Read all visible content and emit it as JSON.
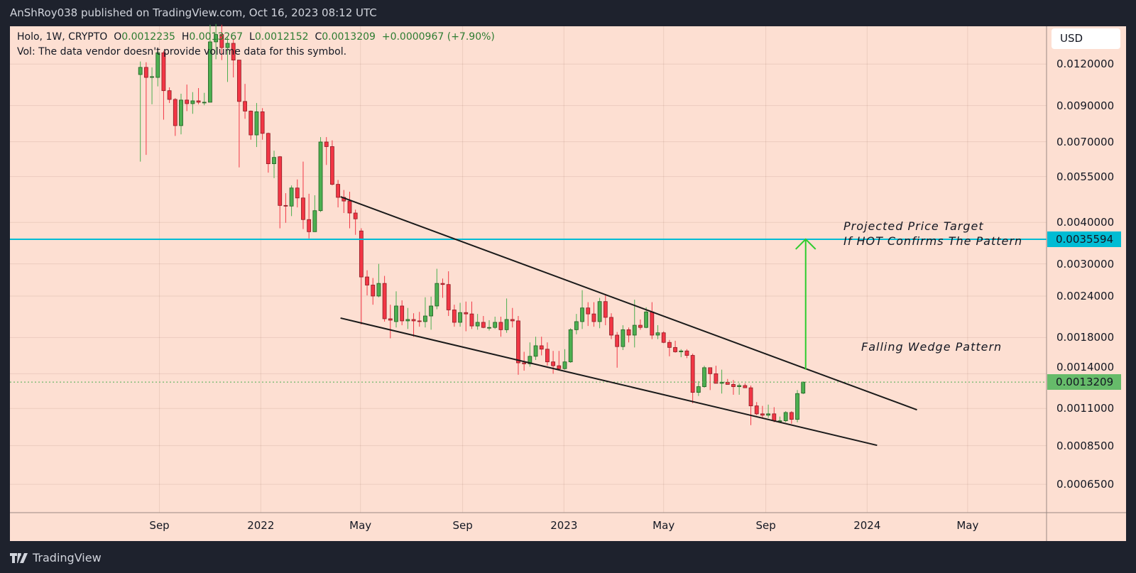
{
  "header": {
    "publisher_line": "AnShRoy038 published on TradingView.com, Oct 16, 2023 08:12 UTC"
  },
  "legend": {
    "symbol": "Holo, 1W, CRYPTO",
    "o_label": "O",
    "o": "0.0012235",
    "h_label": "H",
    "h": "0.0013267",
    "l_label": "L",
    "l": "0.0012152",
    "c_label": "C",
    "c": "0.0013209",
    "change": "+0.0000967 (+7.90%)",
    "vol": "Vol: The data vendor doesn't provide volume data for this symbol."
  },
  "price_axis": {
    "currency": "USD"
  },
  "footer": {
    "logo_text": "TradingView"
  },
  "colors": {
    "up": "#4caf50",
    "down": "#f23645",
    "target_line": "#00bcd4",
    "arrow": "#2ecc2e",
    "wedge": "#1a1a1a",
    "background": "#fddfd2"
  },
  "chart_data": {
    "type": "candlestick",
    "interval": "1W",
    "start_date": "2021-08-09",
    "y_scale": "log",
    "ylim": [
      0.000534,
      0.0156
    ],
    "xlim": [
      "2021-03-05",
      "2024-08-04"
    ],
    "grid": true,
    "y_ticks": [
      {
        "value": 0.012,
        "label": "0.0120000"
      },
      {
        "value": 0.009,
        "label": "0.0090000"
      },
      {
        "value": 0.007,
        "label": "0.0070000"
      },
      {
        "value": 0.0055,
        "label": "0.0055000"
      },
      {
        "value": 0.004,
        "label": "0.0040000"
      },
      {
        "value": 0.003,
        "label": "0.0030000"
      },
      {
        "value": 0.0024,
        "label": "0.0024000"
      },
      {
        "value": 0.0018,
        "label": "0.0018000"
      },
      {
        "value": 0.0014,
        "label": "0.0014000"
      },
      {
        "value": 0.0011,
        "label": "0.0011000"
      },
      {
        "value": 0.00085,
        "label": "0.0008500"
      },
      {
        "value": 0.00065,
        "label": "0.0006500"
      }
    ],
    "x_ticks": [
      {
        "date": "2021-09-01",
        "label": "Sep"
      },
      {
        "date": "2022-01-01",
        "label": "2022"
      },
      {
        "date": "2022-05-01",
        "label": "May"
      },
      {
        "date": "2022-09-01",
        "label": "Sep"
      },
      {
        "date": "2023-01-01",
        "label": "2023"
      },
      {
        "date": "2023-05-01",
        "label": "May"
      },
      {
        "date": "2023-09-01",
        "label": "Sep"
      },
      {
        "date": "2024-01-01",
        "label": "2024"
      },
      {
        "date": "2024-05-01",
        "label": "May"
      }
    ],
    "candles_ohlc": [
      [
        0.01116,
        0.01222,
        0.0061,
        0.01173
      ],
      [
        0.01173,
        0.01216,
        0.00639,
        0.01094
      ],
      [
        0.01094,
        0.01173,
        0.00908,
        0.011
      ],
      [
        0.01094,
        0.01327,
        0.01028,
        0.01298
      ],
      [
        0.01298,
        0.01315,
        0.00816,
        0.00998
      ],
      [
        0.00998,
        0.01021,
        0.00916,
        0.00939
      ],
      [
        0.00939,
        0.00948,
        0.00729,
        0.00783
      ],
      [
        0.00783,
        0.00977,
        0.00737,
        0.00935
      ],
      [
        0.00935,
        0.01041,
        0.00866,
        0.00912
      ],
      [
        0.00912,
        0.00988,
        0.0085,
        0.0093
      ],
      [
        0.0093,
        0.01016,
        0.00908,
        0.00921
      ],
      [
        0.00921,
        0.00983,
        0.00902,
        0.00921
      ],
      [
        0.00921,
        0.01577,
        0.00921,
        0.014
      ],
      [
        0.014,
        0.01585,
        0.01241,
        0.01473
      ],
      [
        0.01473,
        0.01577,
        0.01234,
        0.01345
      ],
      [
        0.01345,
        0.01443,
        0.0106,
        0.01386
      ],
      [
        0.01386,
        0.01435,
        0.01094,
        0.01234
      ],
      [
        0.01234,
        0.01234,
        0.00586,
        0.00926
      ],
      [
        0.00926,
        0.01046,
        0.00821,
        0.00866
      ],
      [
        0.00866,
        0.0087,
        0.0071,
        0.00734
      ],
      [
        0.00734,
        0.00916,
        0.00675,
        0.00862
      ],
      [
        0.00862,
        0.00884,
        0.0071,
        0.00742
      ],
      [
        0.00742,
        0.00746,
        0.00565,
        0.00601
      ],
      [
        0.00601,
        0.00658,
        0.00544,
        0.00628
      ],
      [
        0.00631,
        0.00634,
        0.00384,
        0.0045
      ],
      [
        0.0045,
        0.0049,
        0.00399,
        0.00448
      ],
      [
        0.00448,
        0.00517,
        0.00418,
        0.00508
      ],
      [
        0.00508,
        0.00539,
        0.00444,
        0.00474
      ],
      [
        0.00474,
        0.0061,
        0.00382,
        0.00408
      ],
      [
        0.00408,
        0.00488,
        0.00358,
        0.00375
      ],
      [
        0.00375,
        0.00483,
        0.00375,
        0.00434
      ],
      [
        0.00434,
        0.00723,
        0.0043,
        0.00699
      ],
      [
        0.00699,
        0.00723,
        0.00596,
        0.00677
      ],
      [
        0.00677,
        0.00707,
        0.00517,
        0.00521
      ],
      [
        0.00521,
        0.00537,
        0.00444,
        0.00476
      ],
      [
        0.00476,
        0.00501,
        0.00427,
        0.00464
      ],
      [
        0.00464,
        0.00495,
        0.00384,
        0.00427
      ],
      [
        0.00427,
        0.00437,
        0.00367,
        0.0041
      ],
      [
        0.00377,
        0.00384,
        0.00197,
        0.00274
      ],
      [
        0.00274,
        0.00287,
        0.00241,
        0.00259
      ],
      [
        0.00259,
        0.00272,
        0.00226,
        0.0024
      ],
      [
        0.0024,
        0.003,
        0.00238,
        0.00262
      ],
      [
        0.00262,
        0.00276,
        0.00201,
        0.00205
      ],
      [
        0.00205,
        0.00226,
        0.00179,
        0.00203
      ],
      [
        0.00201,
        0.00248,
        0.00193,
        0.00224
      ],
      [
        0.00224,
        0.00233,
        0.00196,
        0.00202
      ],
      [
        0.00202,
        0.00221,
        0.00191,
        0.00204
      ],
      [
        0.00204,
        0.00213,
        0.00181,
        0.00202
      ],
      [
        0.00202,
        0.00215,
        0.00194,
        0.00201
      ],
      [
        0.00201,
        0.00238,
        0.00193,
        0.00209
      ],
      [
        0.00209,
        0.00239,
        0.0019,
        0.00224
      ],
      [
        0.00224,
        0.0029,
        0.00219,
        0.00262
      ],
      [
        0.00262,
        0.00271,
        0.00237,
        0.0026
      ],
      [
        0.0026,
        0.00285,
        0.00209,
        0.00218
      ],
      [
        0.00218,
        0.00226,
        0.00194,
        0.002
      ],
      [
        0.002,
        0.00229,
        0.00194,
        0.00214
      ],
      [
        0.00214,
        0.00231,
        0.00188,
        0.00212
      ],
      [
        0.00212,
        0.00231,
        0.00191,
        0.00195
      ],
      [
        0.00195,
        0.00212,
        0.0019,
        0.002
      ],
      [
        0.002,
        0.00209,
        0.00192,
        0.00193
      ],
      [
        0.00193,
        0.00203,
        0.00189,
        0.00193
      ],
      [
        0.00193,
        0.00208,
        0.00191,
        0.002
      ],
      [
        0.002,
        0.00208,
        0.00181,
        0.0019
      ],
      [
        0.0019,
        0.00236,
        0.00186,
        0.00204
      ],
      [
        0.00204,
        0.00221,
        0.00193,
        0.00202
      ],
      [
        0.00202,
        0.00209,
        0.00139,
        0.00151
      ],
      [
        0.00151,
        0.00163,
        0.00143,
        0.0015
      ],
      [
        0.0015,
        0.00174,
        0.00147,
        0.00158
      ],
      [
        0.00158,
        0.00181,
        0.00154,
        0.0017
      ],
      [
        0.0017,
        0.00181,
        0.00159,
        0.00166
      ],
      [
        0.00166,
        0.00174,
        0.00148,
        0.00152
      ],
      [
        0.00152,
        0.00164,
        0.0014,
        0.00148
      ],
      [
        0.00148,
        0.00164,
        0.00144,
        0.00145
      ],
      [
        0.00145,
        0.00166,
        0.00144,
        0.00152
      ],
      [
        0.00152,
        0.00192,
        0.00151,
        0.0019
      ],
      [
        0.0019,
        0.00212,
        0.00184,
        0.00201
      ],
      [
        0.00201,
        0.0025,
        0.00191,
        0.00221
      ],
      [
        0.00221,
        0.0023,
        0.00195,
        0.00212
      ],
      [
        0.00212,
        0.0023,
        0.00194,
        0.00201
      ],
      [
        0.00201,
        0.00237,
        0.00192,
        0.00231
      ],
      [
        0.00231,
        0.00243,
        0.00196,
        0.00207
      ],
      [
        0.00207,
        0.00213,
        0.00178,
        0.00183
      ],
      [
        0.00183,
        0.00187,
        0.00146,
        0.00169
      ],
      [
        0.00169,
        0.00196,
        0.00165,
        0.0019
      ],
      [
        0.0019,
        0.00193,
        0.00174,
        0.00183
      ],
      [
        0.00183,
        0.00234,
        0.00168,
        0.00196
      ],
      [
        0.00196,
        0.00204,
        0.0019,
        0.00193
      ],
      [
        0.00193,
        0.00222,
        0.00192,
        0.00215
      ],
      [
        0.00215,
        0.0023,
        0.00178,
        0.00183
      ],
      [
        0.00183,
        0.00196,
        0.00178,
        0.00186
      ],
      [
        0.00186,
        0.00188,
        0.00173,
        0.00174
      ],
      [
        0.00174,
        0.00177,
        0.00158,
        0.00168
      ],
      [
        0.00168,
        0.00176,
        0.00162,
        0.00163
      ],
      [
        0.00163,
        0.00166,
        0.00157,
        0.00164
      ],
      [
        0.00164,
        0.00166,
        0.00156,
        0.00159
      ],
      [
        0.00159,
        0.00161,
        0.00114,
        0.00123
      ],
      [
        0.00123,
        0.00133,
        0.0012,
        0.00128
      ],
      [
        0.00128,
        0.00148,
        0.00127,
        0.00146
      ],
      [
        0.00146,
        0.00146,
        0.00125,
        0.0014
      ],
      [
        0.0014,
        0.00148,
        0.00131,
        0.00131
      ],
      [
        0.00131,
        0.00144,
        0.00122,
        0.00132
      ],
      [
        0.00132,
        0.00135,
        0.0013,
        0.0013
      ],
      [
        0.0013,
        0.00134,
        0.00121,
        0.00128
      ],
      [
        0.00128,
        0.00131,
        0.00121,
        0.00129
      ],
      [
        0.00129,
        0.00131,
        0.00127,
        0.00127
      ],
      [
        0.00127,
        0.00129,
        0.00098,
        0.00112
      ],
      [
        0.00112,
        0.00115,
        0.00105,
        0.00106
      ],
      [
        0.00106,
        0.00112,
        0.00103,
        0.00105
      ],
      [
        0.00105,
        0.00113,
        0.00103,
        0.00106
      ],
      [
        0.00106,
        0.00111,
        0.001,
        0.00101
      ],
      [
        0.00101,
        0.00104,
        0.001,
        0.00101
      ],
      [
        0.00101,
        0.00108,
        0.001,
        0.00107
      ],
      [
        0.00107,
        0.00108,
        0.00099,
        0.00102
      ],
      [
        0.00102,
        0.00125,
        0.001,
        0.00122
      ],
      [
        0.0012235,
        0.0013267,
        0.0012152,
        0.0013209
      ]
    ],
    "last_price": {
      "value": 0.0013209,
      "label": "0.0013209"
    },
    "annotations": {
      "target_line": {
        "price": 0.0035594,
        "label": "0.0035594"
      },
      "upper_trendline": [
        [
          "2022-04-07",
          0.00478
        ],
        [
          "2024-03-01",
          0.00109
        ]
      ],
      "lower_trendline": [
        [
          "2022-04-07",
          0.00206
        ],
        [
          "2024-01-13",
          0.000852
        ]
      ],
      "arrow": {
        "date": "2023-10-19",
        "from": 0.00144,
        "to": 0.0035594
      },
      "target_text_1": "Projected Price Target",
      "target_text_2": "If HOT Confirms The Pattern",
      "pattern_text": "Falling Wedge Pattern"
    }
  }
}
